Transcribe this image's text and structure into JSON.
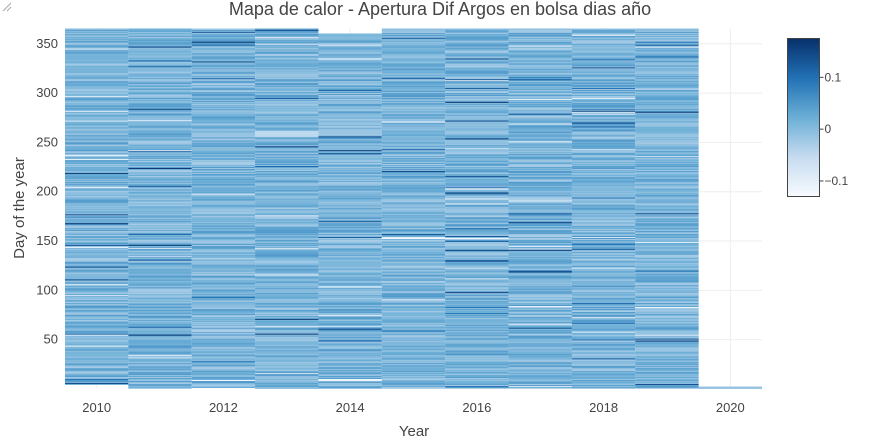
{
  "chart_data": {
    "type": "heatmap",
    "title": "Mapa de calor - Apertura Dif Argos en bolsa dias año",
    "xlabel": "Year",
    "ylabel": "Day of the year",
    "x_ticks": [
      "2010",
      "2012",
      "2014",
      "2016",
      "2018",
      "2020"
    ],
    "y_ticks": [
      "50",
      "100",
      "150",
      "200",
      "250",
      "300",
      "350"
    ],
    "xlim": [
      2009.5,
      2020.5
    ],
    "ylim": [
      1,
      366
    ],
    "years": [
      2010,
      2011,
      2012,
      2013,
      2014,
      2015,
      2016,
      2017,
      2018,
      2019,
      2020
    ],
    "year_day_ranges": [
      [
        5,
        365
      ],
      [
        1,
        365
      ],
      [
        2,
        365
      ],
      [
        1,
        365
      ],
      [
        1,
        360
      ],
      [
        1,
        365
      ],
      [
        1,
        365
      ],
      [
        1,
        365
      ],
      [
        1,
        365
      ],
      [
        1,
        365
      ],
      [
        1,
        2
      ]
    ],
    "colorscale": {
      "name": "Blues",
      "min": -0.13,
      "max": 0.175,
      "stops": [
        "#f7fbff",
        "#c6dbef",
        "#6baed6",
        "#2171b5",
        "#08306b"
      ]
    },
    "colorbar_ticks": [
      "0.1",
      "0",
      "−0.1"
    ],
    "colorbar_tick_values": [
      0.1,
      0,
      -0.1
    ],
    "typical_value_range": [
      -0.03,
      0.05
    ],
    "grid": true
  }
}
